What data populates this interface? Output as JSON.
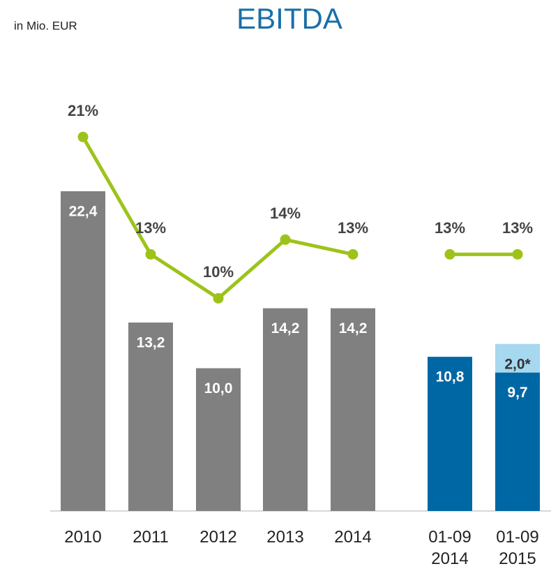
{
  "chart_data": {
    "type": "bar",
    "title": "EBITDA",
    "subtitle": "in Mio. EUR",
    "categories": [
      "2010",
      "2011",
      "2012",
      "2013",
      "2014",
      "01-09 2014",
      "01-09 2015"
    ],
    "ylim": [
      0,
      30
    ],
    "y2lim": [
      -4.5,
      24.7
    ],
    "series": [
      {
        "type": "bar",
        "values": [
          22.4,
          13.2,
          10.0,
          14.2,
          14.2,
          10.8,
          9.7
        ],
        "value_labels": [
          "22,4",
          "13,2",
          "10,0",
          "14,2",
          "14,2",
          "10,8",
          "9,7"
        ],
        "colors": [
          "#808080",
          "#808080",
          "#808080",
          "#808080",
          "#808080",
          "#0067a5",
          "#0067a5"
        ]
      },
      {
        "type": "bar",
        "stacked": true,
        "values": [
          null,
          null,
          null,
          null,
          null,
          null,
          2.0
        ],
        "value_labels": [
          null,
          null,
          null,
          null,
          null,
          null,
          "2,0*"
        ],
        "color": "#a6d8ef"
      },
      {
        "type": "line",
        "axis": "y2",
        "color": "#9dc31a",
        "values": [
          21,
          13,
          10,
          14,
          13,
          null,
          null
        ],
        "value_labels": [
          "21%",
          "13%",
          "10%",
          "14%",
          "13%",
          null,
          null
        ]
      },
      {
        "type": "line",
        "axis": "y2",
        "color": "#9dc31a",
        "values": [
          null,
          null,
          null,
          null,
          null,
          13,
          13
        ],
        "value_labels": [
          null,
          null,
          null,
          null,
          null,
          "13%",
          "13%"
        ]
      }
    ]
  }
}
